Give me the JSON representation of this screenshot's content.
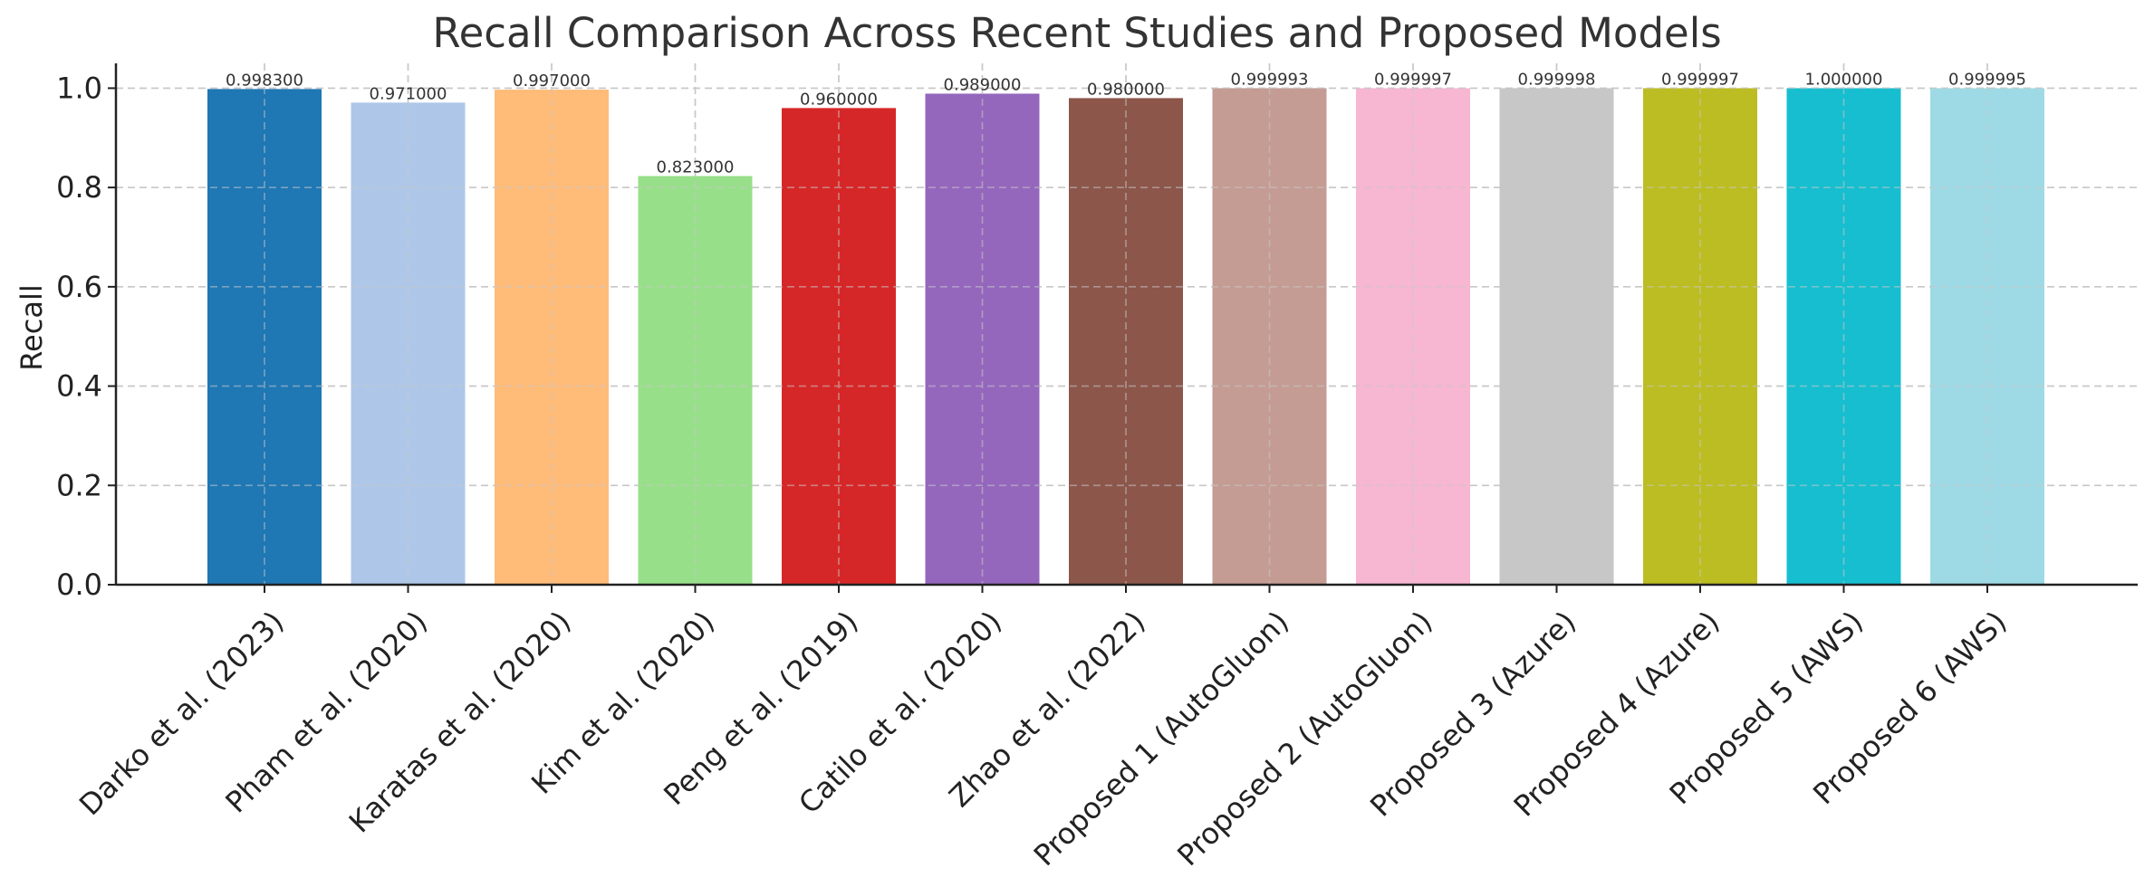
{
  "chart_data": {
    "type": "bar",
    "title": "Recall Comparison Across Recent Studies and Proposed Models",
    "xlabel": "",
    "ylabel": "Recall",
    "ylim": [
      0,
      1.05
    ],
    "yticks": [
      0.0,
      0.2,
      0.4,
      0.6,
      0.8,
      1.0
    ],
    "ytick_labels": [
      "0.0",
      "0.2",
      "0.4",
      "0.6",
      "0.8",
      "1.0"
    ],
    "grid": true,
    "categories": [
      "Darko et al. (2023)",
      "Pham et al. (2020)",
      "Karatas et al. (2020)",
      "Kim et al. (2020)",
      "Peng et al. (2019)",
      "Catilo et al. (2020)",
      "Zhao et al. (2022)",
      "Proposed 1 (AutoGluon)",
      "Proposed 2 (AutoGluon)",
      "Proposed 3 (Azure)",
      "Proposed 4 (Azure)",
      "Proposed 5 (AWS)",
      "Proposed 6 (AWS)"
    ],
    "values": [
      0.9983,
      0.971,
      0.997,
      0.823,
      0.96,
      0.989,
      0.98,
      0.999993,
      0.999997,
      0.999998,
      0.999997,
      1.0,
      0.999995
    ],
    "data_labels": [
      "0.998300",
      "0.971000",
      "0.997000",
      "0.823000",
      "0.960000",
      "0.989000",
      "0.980000",
      "0.999993",
      "0.999997",
      "0.999998",
      "0.999997",
      "1.000000",
      "0.999995"
    ],
    "colors": [
      "#1f77b4",
      "#aec7e8",
      "#ffbb78",
      "#98df8a",
      "#d62728",
      "#9467bd",
      "#8c564b",
      "#c49c94",
      "#f7b6d2",
      "#c7c7c7",
      "#bcbd22",
      "#17becf",
      "#9edae5"
    ]
  }
}
